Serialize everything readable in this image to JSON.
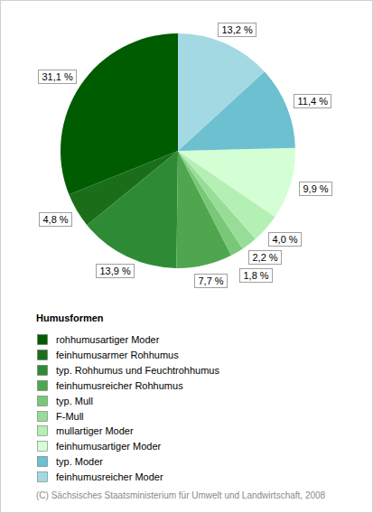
{
  "chart_data": {
    "type": "pie",
    "legend_title": "Humusformen",
    "source": "(C) Sächsisches Staatsministerium für Umwelt und Landwirtschaft, 2008",
    "categories": [
      "rohhumusartiger Moder",
      "feinhumusarmer Rohhumus",
      "typ. Rohhumus und Feuchtrohhumus",
      "feinhumusreicher Rohhumus",
      "typ. Mull",
      "F-Mull",
      "mullartiger Moder",
      "feinhumusartiger Moder",
      "typ. Moder",
      "feinhumusreicher Moder"
    ],
    "values": [
      31.1,
      4.8,
      13.9,
      7.7,
      1.8,
      2.2,
      4.0,
      9.9,
      11.4,
      13.2
    ],
    "value_labels": [
      "31,1 %",
      "4,8 %",
      "13,9 %",
      "7,7 %",
      "1,8 %",
      "2,2 %",
      "4,0 %",
      "9,9 %",
      "11,4 %",
      "13,2 %"
    ],
    "colors": [
      "#005c00",
      "#1a6e1a",
      "#2f8a35",
      "#4fa64f",
      "#78c878",
      "#97dd97",
      "#b4efb4",
      "#d4ffd4",
      "#6cc0d0",
      "#a3d9e3"
    ],
    "data_labels": true,
    "legend": "bottom"
  }
}
